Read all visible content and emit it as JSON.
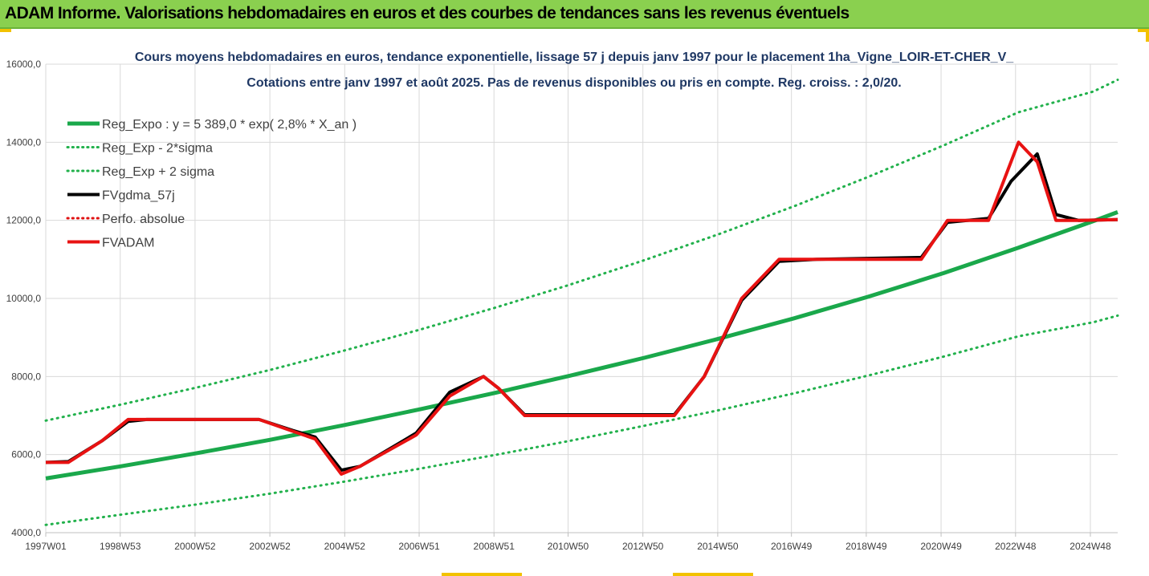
{
  "header": {
    "title": "ADAM Informe. Valorisations hebdomadaires en euros et des courbes de tendances sans les revenus éventuels"
  },
  "colors": {
    "header_bg": "#8ad04f",
    "trend": "#1aa84b",
    "sigma": "#22b14c",
    "gdma": "#000000",
    "perfo": "#e01010",
    "adam": "#e81212"
  },
  "chart_data": {
    "type": "line",
    "title": "Cours moyens hebdomadaires en euros, tendance exponentielle, lissage 57 j depuis janv 1997 pour le placement 1ha_Vigne_LOIR-ET-CHER_V_",
    "subtitle": "Cotations entre janv 1997 et août 2025. Pas de revenus disponibles ou pris en compte. Reg. croiss. : 2,0/20.",
    "xlabel": "",
    "ylabel": "",
    "x_unit": "year (decimal)",
    "xlim": [
      1997.0,
      2025.65
    ],
    "ylim": [
      4000,
      16000
    ],
    "y_ticks": [
      4000,
      6000,
      8000,
      10000,
      12000,
      14000,
      16000
    ],
    "y_tick_labels": [
      "4000,0",
      "6000,0",
      "8000,0",
      "10000,0",
      "12000,0",
      "14000,0",
      "16000,0"
    ],
    "x_ticks": [
      1997.0,
      1998.99,
      2000.99,
      2002.99,
      2004.99,
      2006.98,
      2008.98,
      2010.96,
      2012.96,
      2014.96,
      2016.93,
      2018.93,
      2020.93,
      2022.92,
      2024.92
    ],
    "x_tick_labels": [
      "1997W01",
      "1998W53",
      "2000W52",
      "2002W52",
      "2004W52",
      "2006W51",
      "2008W51",
      "2010W50",
      "2012W50",
      "2014W50",
      "2016W49",
      "2018W49",
      "2020W49",
      "2022W48",
      "2024W48"
    ],
    "grid": true,
    "legend_position": "top-left",
    "series": [
      {
        "name": "Reg_Expo : y = 5 389,0 * exp( 2,8% *  X_an )",
        "style": "solid",
        "color": "#1aa84b",
        "width": 5,
        "x": [
          1997,
          1999,
          2001,
          2003,
          2005,
          2007,
          2009,
          2011,
          2013,
          2015,
          2017,
          2019,
          2021,
          2023,
          2025,
          2025.65
        ],
        "y": [
          5389,
          5700,
          6030,
          6380,
          6760,
          7160,
          7580,
          8020,
          8480,
          8970,
          9490,
          10050,
          10650,
          11300,
          11980,
          12210
        ]
      },
      {
        "name": "Reg_Exp - 2*sigma",
        "style": "dotted",
        "color": "#22b14c",
        "width": 3,
        "x": [
          1997,
          1999,
          2001,
          2003,
          2005,
          2007,
          2009,
          2011,
          2013,
          2015,
          2017,
          2019,
          2021,
          2023,
          2025,
          2025.65
        ],
        "y": [
          4200,
          4460,
          4720,
          5000,
          5310,
          5640,
          5990,
          6350,
          6740,
          7140,
          7570,
          8030,
          8510,
          9030,
          9390,
          9560
        ]
      },
      {
        "name": "Reg_Exp + 2 sigma",
        "style": "dotted",
        "color": "#22b14c",
        "width": 3,
        "x": [
          1997,
          1999,
          2001,
          2003,
          2005,
          2007,
          2009,
          2011,
          2013,
          2015,
          2017,
          2019,
          2021,
          2023,
          2025,
          2025.65
        ],
        "y": [
          6870,
          7280,
          7710,
          8170,
          8670,
          9200,
          9760,
          10350,
          10980,
          11650,
          12360,
          13120,
          13920,
          14770,
          15300,
          15600
        ]
      },
      {
        "name": "FVgdma_57j",
        "style": "solid",
        "color": "#000000",
        "width": 4,
        "x": [
          1997,
          1997.6,
          1998.5,
          1999.2,
          1999.7,
          2002.7,
          2003.6,
          2004.2,
          2004.9,
          2005.4,
          2006.9,
          2007.8,
          2008.7,
          2009.1,
          2009.8,
          2013.8,
          2014.6,
          2015.6,
          2016.6,
          2017.6,
          2020.4,
          2021.1,
          2022.2,
          2022.8,
          2023.5,
          2024.0,
          2024.6,
          2025.65
        ],
        "y": [
          5800,
          5820,
          6350,
          6850,
          6900,
          6900,
          6620,
          6450,
          5600,
          5700,
          6550,
          7600,
          8000,
          7700,
          7020,
          7020,
          8000,
          9950,
          10950,
          11000,
          11050,
          11950,
          12050,
          13000,
          13700,
          12150,
          12000,
          12020
        ]
      },
      {
        "name": "Perfo. absolue",
        "style": "dotted",
        "color": "#e01010",
        "width": 3,
        "x": [],
        "y": []
      },
      {
        "name": "FVADAM",
        "style": "solid",
        "color": "#e81212",
        "width": 4,
        "x": [
          1997,
          1997.6,
          1998.5,
          1999.2,
          1999.7,
          2002.7,
          2003.6,
          2004.2,
          2004.9,
          2005.4,
          2006.9,
          2007.8,
          2008.7,
          2009.1,
          2009.8,
          2013.8,
          2014.6,
          2015.6,
          2016.6,
          2017.6,
          2020.4,
          2021.1,
          2022.2,
          2023.0,
          2023.5,
          2024.0,
          2024.6,
          2025.65
        ],
        "y": [
          5800,
          5800,
          6350,
          6900,
          6900,
          6900,
          6600,
          6400,
          5500,
          5700,
          6500,
          7500,
          8000,
          7700,
          7000,
          7000,
          8000,
          10000,
          11000,
          11000,
          11000,
          12000,
          12000,
          14000,
          13500,
          12000,
          12000,
          12020
        ]
      }
    ]
  }
}
